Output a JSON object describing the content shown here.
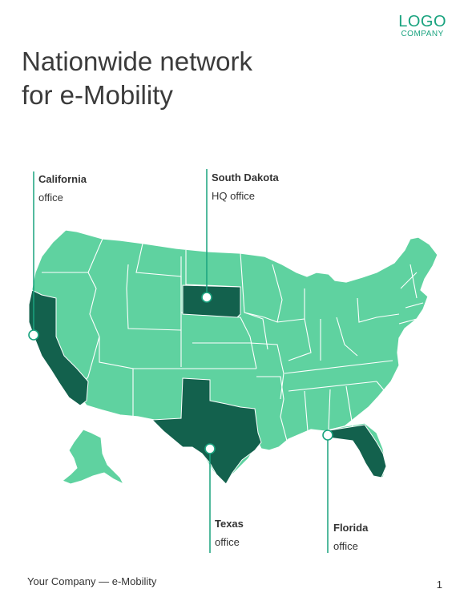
{
  "logo": {
    "main": "LOGO",
    "sub": "COMPANY"
  },
  "title": {
    "line1": "Nationwide network",
    "line2": "for e-Mobility"
  },
  "colors": {
    "map_fill": "#5fd2a0",
    "highlight_fill": "#13614d",
    "accent": "#1aa37f",
    "border": "#ffffff"
  },
  "offices": [
    {
      "name": "California",
      "sub": "office"
    },
    {
      "name": "South Dakota",
      "sub": "HQ office"
    },
    {
      "name": "Texas",
      "sub": "office"
    },
    {
      "name": "Florida",
      "sub": "office"
    }
  ],
  "footer": {
    "text": "Your Company — e-Mobility",
    "page": "1"
  }
}
